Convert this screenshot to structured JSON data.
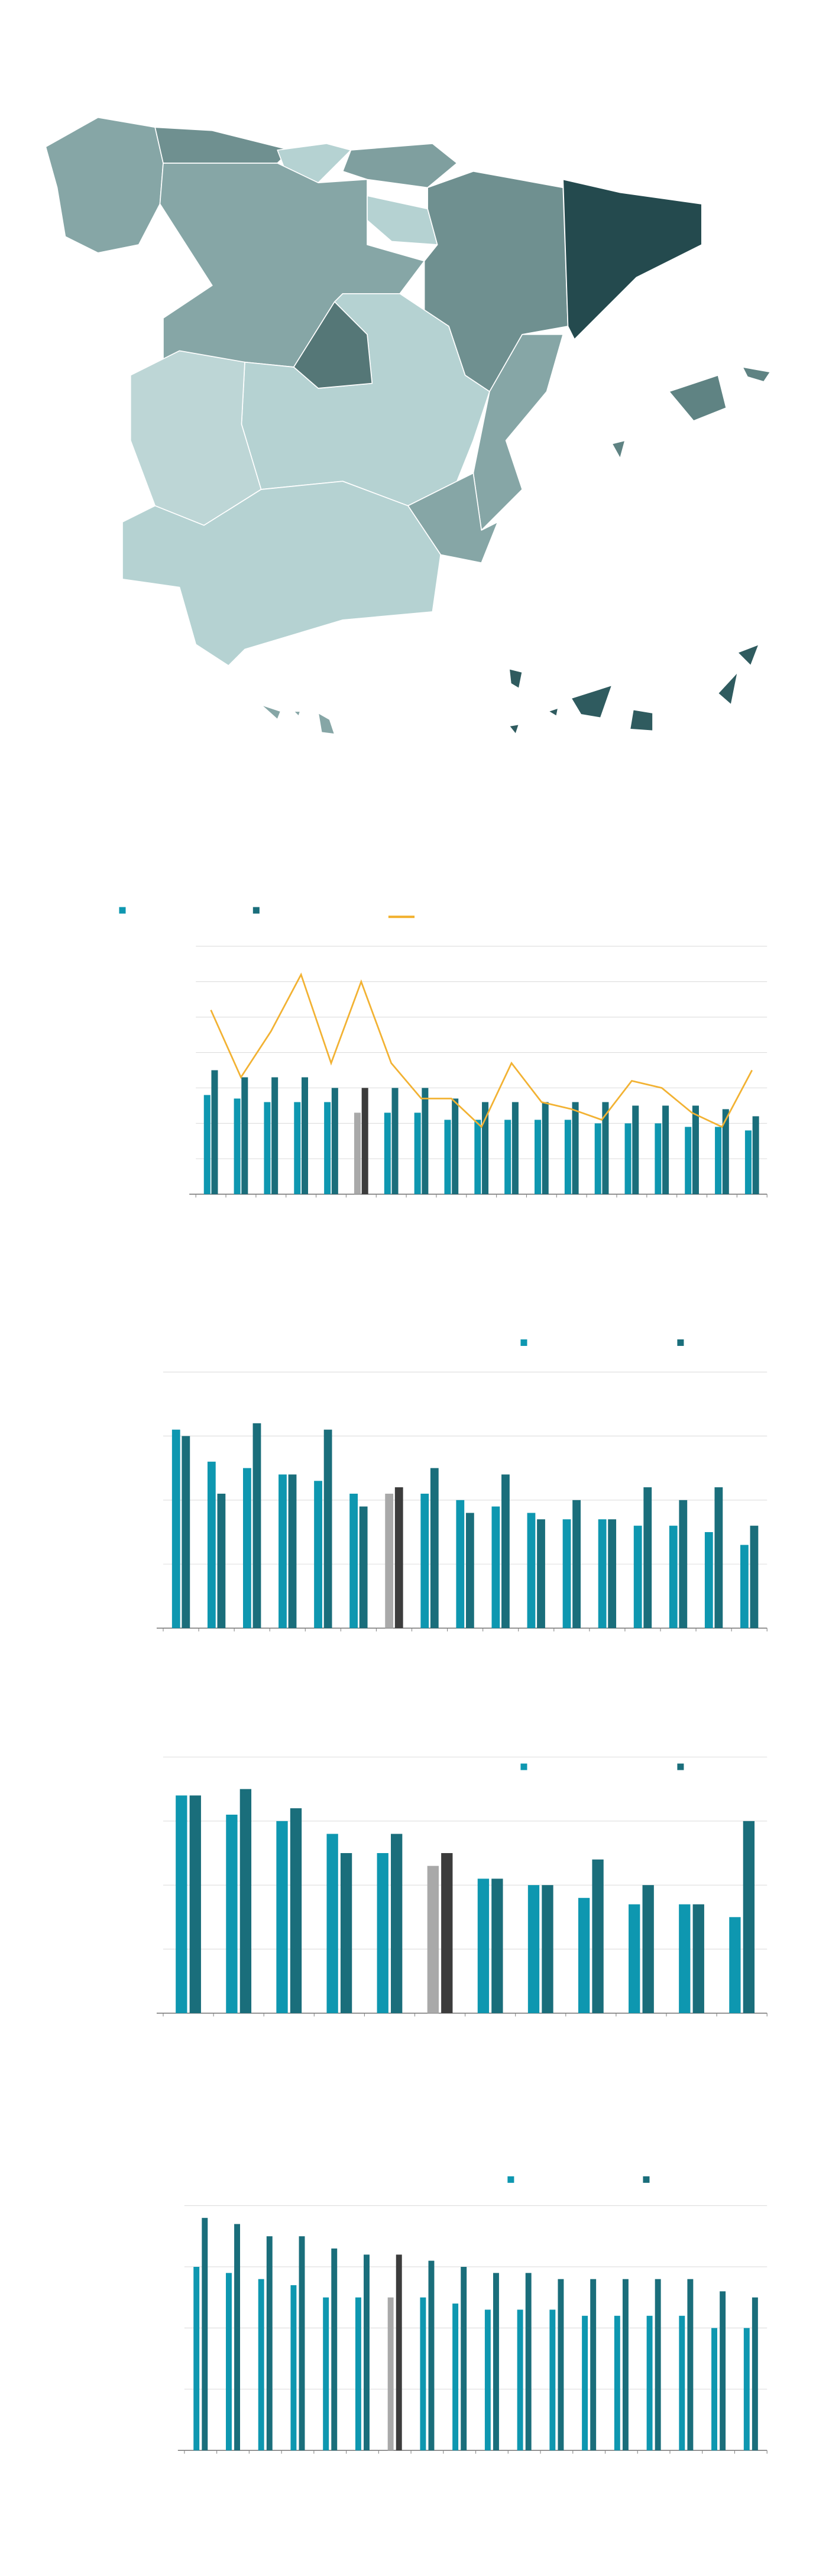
{
  "chart_data": [
    {
      "type": "bar",
      "ylim": [
        0,
        7
      ],
      "yticks": [
        0,
        1,
        2,
        3,
        4,
        5,
        6,
        7
      ],
      "grid": true,
      "highlight": {
        "index": 5,
        "colors": [
          "#a9a9a9",
          "#3c3c3c"
        ]
      },
      "series": [
        {
          "type": "bar",
          "color": "#0e97b0",
          "values": [
            2.8,
            2.7,
            2.6,
            2.6,
            2.6,
            2.3,
            2.3,
            2.3,
            2.1,
            2.1,
            2.1,
            2.1,
            2.1,
            2.0,
            2.0,
            2.0,
            1.9,
            1.9,
            1.8
          ]
        },
        {
          "type": "bar",
          "color": "#1a6e7b",
          "values": [
            3.5,
            3.3,
            3.3,
            3.3,
            3.0,
            3.0,
            3.0,
            3.0,
            2.7,
            2.6,
            2.6,
            2.6,
            2.6,
            2.6,
            2.5,
            2.5,
            2.5,
            2.4,
            2.2
          ]
        },
        {
          "type": "line",
          "color": "#f2b233",
          "values": [
            5.2,
            3.3,
            4.6,
            6.2,
            3.7,
            6.0,
            3.7,
            2.7,
            2.7,
            1.9,
            3.7,
            2.6,
            2.4,
            2.1,
            3.2,
            3.0,
            2.3,
            1.9,
            3.5
          ]
        }
      ]
    },
    {
      "type": "bar",
      "ylim": [
        0,
        4
      ],
      "yticks": [
        0,
        1,
        2,
        3,
        4
      ],
      "grid": true,
      "highlight": {
        "index": 6,
        "colors": [
          "#a9a9a9",
          "#3c3c3c"
        ]
      },
      "series": [
        {
          "type": "bar",
          "color": "#0e97b0",
          "values": [
            3.1,
            2.6,
            2.5,
            2.4,
            2.3,
            2.1,
            2.1,
            2.1,
            2.0,
            1.9,
            1.8,
            1.7,
            1.7,
            1.6,
            1.6,
            1.5,
            1.3
          ]
        },
        {
          "type": "bar",
          "color": "#1a6e7b",
          "values": [
            3.0,
            2.1,
            3.2,
            2.4,
            3.1,
            1.9,
            2.2,
            2.5,
            1.8,
            2.4,
            1.7,
            2.0,
            1.7,
            2.2,
            2.0,
            2.2,
            1.6
          ]
        }
      ]
    },
    {
      "type": "bar",
      "ylim": [
        0,
        4
      ],
      "yticks": [
        0,
        1,
        2,
        3,
        4
      ],
      "grid": true,
      "highlight": {
        "index": 5,
        "colors": [
          "#a9a9a9",
          "#3c3c3c"
        ]
      },
      "series": [
        {
          "type": "bar",
          "color": "#0e97b0",
          "values": [
            3.4,
            3.1,
            3.0,
            2.8,
            2.5,
            2.3,
            2.1,
            2.0,
            1.8,
            1.7,
            1.7,
            1.5
          ]
        },
        {
          "type": "bar",
          "color": "#1a6e7b",
          "values": [
            3.4,
            3.5,
            3.2,
            2.5,
            2.8,
            2.5,
            2.1,
            2.0,
            2.4,
            2.0,
            1.7,
            3.0
          ]
        }
      ]
    },
    {
      "type": "bar",
      "ylim": [
        0,
        4
      ],
      "yticks": [
        0,
        1,
        2,
        3,
        4
      ],
      "grid": true,
      "highlight": {
        "index": 6,
        "colors": [
          "#a9a9a9",
          "#3c3c3c"
        ]
      },
      "series": [
        {
          "type": "bar",
          "color": "#0e97b0",
          "values": [
            3.0,
            2.9,
            2.8,
            2.7,
            2.5,
            2.5,
            2.5,
            2.5,
            2.4,
            2.3,
            2.3,
            2.3,
            2.2,
            2.2,
            2.2,
            2.2,
            2.0,
            2.0
          ]
        },
        {
          "type": "bar",
          "color": "#1a6e7b",
          "values": [
            3.8,
            3.7,
            3.5,
            3.5,
            3.3,
            3.2,
            3.2,
            3.1,
            3.0,
            2.9,
            2.9,
            2.8,
            2.8,
            2.8,
            2.8,
            2.8,
            2.6,
            2.5
          ]
        }
      ]
    }
  ]
}
